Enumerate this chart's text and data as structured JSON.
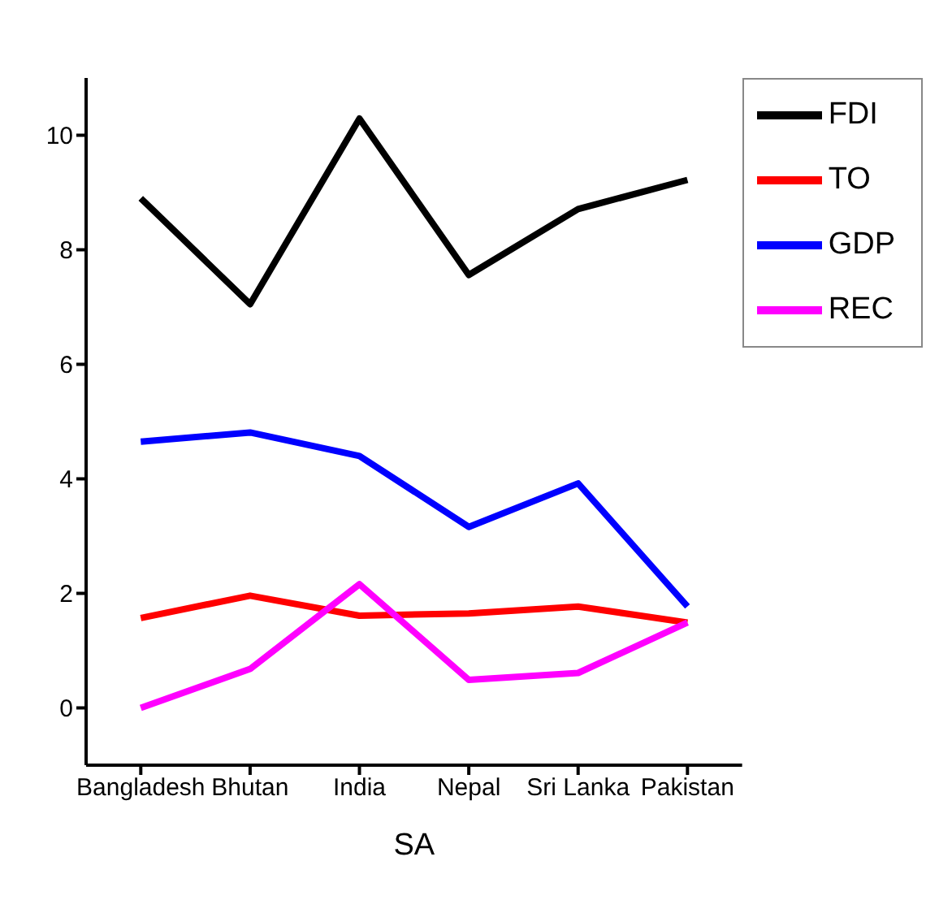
{
  "chart_data": {
    "type": "line",
    "xlabel": "SA",
    "categories": [
      "Bangladesh",
      "Bhutan",
      "India",
      "Nepal",
      "Sri Lanka",
      "Pakistan"
    ],
    "series": [
      {
        "name": "FDI",
        "color": "#000000",
        "values": [
          8.9,
          7.05,
          10.29,
          7.56,
          8.71,
          9.22
        ]
      },
      {
        "name": "TO",
        "color": "#ff0000",
        "values": [
          1.57,
          1.96,
          1.61,
          1.65,
          1.77,
          1.49
        ]
      },
      {
        "name": "GDP",
        "color": "#0000ff",
        "values": [
          4.65,
          4.81,
          4.4,
          3.16,
          3.92,
          1.77
        ]
      },
      {
        "name": "REC",
        "color": "#ff00ff",
        "values": [
          0,
          0.68,
          2.16,
          0.49,
          0.61,
          1.49
        ]
      }
    ],
    "ylim": [
      -1,
      11
    ],
    "yticks": [
      0,
      2,
      4,
      6,
      8,
      10
    ],
    "grid": false,
    "legend": "top right",
    "marker": "none",
    "line_style": "solid"
  }
}
